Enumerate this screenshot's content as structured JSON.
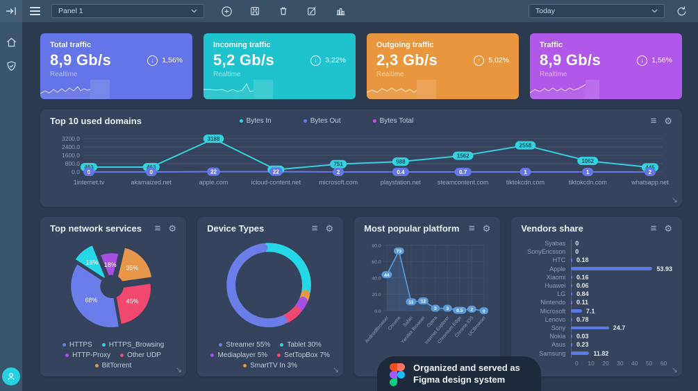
{
  "topbar": {
    "panel_select_value": "Panel 1",
    "range_select_value": "Today"
  },
  "icons": {
    "menu_glyph": "≡",
    "gear_glyph": "⚙",
    "resize_glyph": "↘",
    "add_glyph": "⊕"
  },
  "stat_cards": [
    {
      "title": "Total traffic",
      "value": "8,9 Gb/s",
      "subtitle": "Realtime",
      "delta": "1,56%",
      "trend": "down",
      "color": "#6574e6"
    },
    {
      "title": "Incoming traffic",
      "value": "5,2 Gb/s",
      "subtitle": "Realtime",
      "delta": "3,22%",
      "trend": "down",
      "color": "#1fc3cd"
    },
    {
      "title": "Outgoing traffic",
      "value": "2,3 Gb/s",
      "subtitle": "Realtime",
      "delta": "5,02%",
      "trend": "up",
      "color": "#e9973f"
    },
    {
      "title": "Traffic",
      "value": "8,9 Gb/s",
      "subtitle": "Realtime",
      "delta": "1,56%",
      "trend": "down",
      "color": "#b158e8"
    }
  ],
  "footer": {
    "line1": "Organized and served as",
    "line2": "Figma design system"
  },
  "chart_data": [
    {
      "id": "domains",
      "type": "line",
      "title": "Top 10 used domains",
      "categories": [
        "1internet.tv",
        "akamaized.net",
        "apple.com",
        "icloud-content.net",
        "microsoft.com",
        "playstation.net",
        "steamcontent.com",
        "tiktokcdn.com",
        "tiktokcdn.com",
        "whatsapp.net"
      ],
      "series": [
        {
          "name": "Bytes In",
          "color": "#36d0e0",
          "values": [
            463,
            463,
            3188,
            220,
            751,
            988,
            1562,
            2558,
            1062,
            445
          ],
          "labels": [
            "463",
            "463",
            "3188",
            "220",
            "751",
            "988",
            "1562",
            "2558",
            "1062",
            "445"
          ]
        },
        {
          "name": "Bytes Out",
          "color": "#6577e8",
          "values": [
            0,
            0,
            22,
            22,
            2,
            0.4,
            0.7,
            1,
            1,
            2
          ],
          "labels": [
            "0",
            "0",
            "22",
            "22",
            "2",
            "0.4",
            "0.7",
            "1",
            "1",
            "2"
          ]
        },
        {
          "name": "Bytes Total",
          "color": "#c44fe0",
          "values": []
        }
      ],
      "ylim": [
        0,
        3200
      ],
      "yticks": [
        0,
        800,
        1600,
        2400,
        3200
      ],
      "ytick_labels": [
        "0.0",
        "800.0",
        "1600.0",
        "2400.0",
        "3200.0"
      ],
      "legend_position": "top",
      "grid": true
    },
    {
      "id": "services",
      "type": "pie",
      "title": "Top network services",
      "slices": [
        {
          "name": "HTTPS",
          "value": 68,
          "label": "68%",
          "color": "#6b7de8"
        },
        {
          "name": "HTTPS_Browsing",
          "value": 18,
          "label": "18%",
          "color": "#26d7e8"
        },
        {
          "name": "HTTP-Proxy",
          "value": 18,
          "label": "18%",
          "color": "#a84fe3"
        },
        {
          "name": "Other UDP",
          "value": 45,
          "label": "45%",
          "color": "#f0486e"
        },
        {
          "name": "BitTorrent",
          "value": 35,
          "label": "35%",
          "color": "#e8964a"
        }
      ],
      "legend_position": "bottom"
    },
    {
      "id": "devices",
      "type": "pie",
      "subtype": "donut",
      "title": "Device Types",
      "slices": [
        {
          "name": "Streamer",
          "value": 55,
          "label": "Streamer 55%",
          "color": "#6b7de8"
        },
        {
          "name": "Tablet",
          "value": 30,
          "label": "Tablet 30%",
          "color": "#26d7e8"
        },
        {
          "name": "Mediaplayer",
          "value": 5,
          "label": "Mediaplayer 5%",
          "color": "#a84fe3"
        },
        {
          "name": "SetTopBox",
          "value": 7,
          "label": "SetTopBox 7%",
          "color": "#f0486e"
        },
        {
          "name": "SmartTV In",
          "value": 3,
          "label": "SmartTV In 3%",
          "color": "#e8964a"
        }
      ],
      "legend_position": "bottom"
    },
    {
      "id": "platform",
      "type": "line",
      "subtype": "area",
      "title": "Most popular platform",
      "categories": [
        "AndroidBrowser",
        "Chrome",
        "Safari",
        "Yandex Browser",
        "Opera",
        "Internet Explorer",
        "Chromium Edge",
        "Chrome iOS",
        "UCBrowser"
      ],
      "values": [
        44,
        73,
        11,
        12,
        3,
        3,
        0.5,
        2,
        0
      ],
      "labels": [
        "44",
        "73",
        "11",
        "12",
        "3",
        "3",
        "0.5",
        "2",
        "0"
      ],
      "color": "#5b9bd9",
      "ylim": [
        0,
        80
      ],
      "yticks": [
        0,
        20,
        40,
        60,
        80
      ],
      "ytick_labels": [
        "0.0",
        "20.0",
        "40.0",
        "60.0",
        "80.0"
      ],
      "grid": true
    },
    {
      "id": "vendors",
      "type": "bar",
      "orientation": "horizontal",
      "title": "Vendors share",
      "categories": [
        "Syabas",
        "SonyEricsson",
        "HTC",
        "Apple",
        "Xiaomi",
        "Huawei",
        "LG",
        "Nintendo",
        "Microsoft",
        "Lenovo",
        "Sony",
        "Nokia",
        "Asus",
        "Samsung"
      ],
      "values": [
        0,
        0,
        0.18,
        53.93,
        0.16,
        0.06,
        0.84,
        0.11,
        7.1,
        0.78,
        24.7,
        0.03,
        0.23,
        11.82
      ],
      "labels": [
        "0",
        "0",
        "0.18",
        "53.93",
        "0.16",
        "0.06",
        "0.84",
        "0.11",
        "7.1",
        "0.78",
        "24.7",
        "0.03",
        "0.23",
        "11.82"
      ],
      "color": "#5b79e3",
      "xlim": [
        0,
        60
      ],
      "xticks": [
        0,
        10,
        20,
        30,
        40,
        50,
        60
      ]
    }
  ]
}
